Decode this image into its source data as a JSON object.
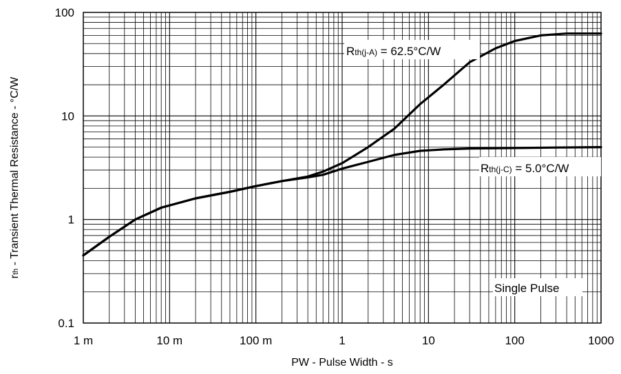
{
  "chart_data": {
    "type": "line",
    "title": "",
    "xlabel": "PW - Pulse Width - s",
    "ylabel_main": "r",
    "ylabel_sub": "th",
    "ylabel_rest": " - Transient Thermal Resistance - °C/W",
    "x_scale": "log",
    "y_scale": "log",
    "xlim": [
      0.001,
      1000
    ],
    "ylim": [
      0.1,
      100
    ],
    "grid": true,
    "x_ticks": [
      {
        "value": 0.001,
        "label": "1 m"
      },
      {
        "value": 0.01,
        "label": "10 m"
      },
      {
        "value": 0.1,
        "label": "100 m"
      },
      {
        "value": 1,
        "label": "1"
      },
      {
        "value": 10,
        "label": "10"
      },
      {
        "value": 100,
        "label": "100"
      },
      {
        "value": 1000,
        "label": "1000"
      }
    ],
    "y_ticks": [
      {
        "value": 0.1,
        "label": "0.1"
      },
      {
        "value": 1,
        "label": "1"
      },
      {
        "value": 10,
        "label": "10"
      },
      {
        "value": 100,
        "label": "100"
      }
    ],
    "series": [
      {
        "x": [
          0.001,
          0.002,
          0.004,
          0.008,
          0.02,
          0.05,
          0.1,
          0.2,
          0.4,
          0.6,
          1,
          2,
          4,
          8,
          15,
          30,
          60,
          100,
          200,
          400,
          1000
        ],
        "y": [
          0.45,
          0.68,
          1.0,
          1.3,
          1.6,
          1.85,
          2.1,
          2.35,
          2.6,
          2.9,
          3.5,
          5.0,
          7.5,
          13,
          20,
          33,
          45,
          53,
          60,
          62.5,
          62.5
        ]
      },
      {
        "x": [
          0.001,
          0.002,
          0.004,
          0.008,
          0.02,
          0.05,
          0.1,
          0.2,
          0.4,
          0.6,
          1,
          2,
          4,
          8,
          15,
          30,
          100,
          300,
          1000
        ],
        "y": [
          0.45,
          0.68,
          1.0,
          1.3,
          1.6,
          1.85,
          2.1,
          2.35,
          2.55,
          2.7,
          3.1,
          3.6,
          4.2,
          4.6,
          4.75,
          4.85,
          4.9,
          4.95,
          5.0
        ]
      }
    ],
    "annotations": [
      {
        "main": "R",
        "sub": "th(j-A)",
        "rest": " = 62.5°C/W"
      },
      {
        "main": "R",
        "sub": "th(j-C)",
        "rest": " = 5.0°C/W"
      },
      {
        "main": "Single Pulse",
        "sub": "",
        "rest": ""
      }
    ]
  }
}
